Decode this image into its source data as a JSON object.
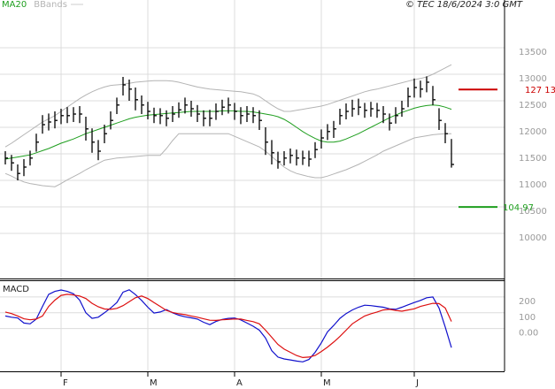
{
  "chart_data": [
    {
      "type": "ohlc",
      "source": "© TEC 18/6/2024 3:0 GMT",
      "ylim": [
        9150,
        14400
      ],
      "yticks": [
        10000,
        10500,
        11000,
        11500,
        12000,
        12500,
        13000,
        13500
      ],
      "grid": true,
      "ohlc": {
        "color": "#000000",
        "high": [
          11550,
          11480,
          11300,
          11400,
          11560,
          11880,
          12230,
          12260,
          12300,
          12350,
          12380,
          12380,
          12400,
          12200,
          11980,
          11760,
          12050,
          12300,
          12560,
          12950,
          12900,
          12750,
          12600,
          12480,
          12370,
          12360,
          12320,
          12400,
          12470,
          12560,
          12500,
          12420,
          12320,
          12330,
          12450,
          12520,
          12560,
          12460,
          12380,
          12400,
          12380,
          12320,
          12000,
          11760,
          11540,
          11550,
          11600,
          11580,
          11560,
          11560,
          11720,
          11960,
          12060,
          12120,
          12350,
          12450,
          12520,
          12540,
          12460,
          12480,
          12460,
          12400,
          12260,
          12380,
          12500,
          12750,
          12920,
          12880,
          12960,
          12780,
          12360,
          12080,
          11780
        ],
        "low": [
          11300,
          11180,
          11000,
          11080,
          11280,
          11540,
          11880,
          11940,
          11980,
          12060,
          12080,
          12100,
          12080,
          11750,
          11520,
          11380,
          11700,
          11960,
          12250,
          12600,
          12500,
          12320,
          12250,
          12150,
          12080,
          12060,
          12020,
          12100,
          12180,
          12260,
          12200,
          12100,
          12020,
          12020,
          12140,
          12230,
          12260,
          12140,
          12060,
          12100,
          12080,
          11950,
          11480,
          11300,
          11220,
          11280,
          11320,
          11280,
          11290,
          11260,
          11420,
          11600,
          11760,
          11800,
          12050,
          12150,
          12200,
          12230,
          12180,
          12200,
          12180,
          12080,
          11940,
          12070,
          12200,
          12380,
          12560,
          12560,
          12660,
          12420,
          11950,
          11700,
          11240
        ],
        "close": [
          11420,
          11330,
          11130,
          11250,
          11420,
          11720,
          12050,
          12100,
          12130,
          12220,
          12220,
          12250,
          12250,
          11970,
          11720,
          11550,
          11880,
          12130,
          12420,
          12800,
          12720,
          12520,
          12420,
          12300,
          12220,
          12220,
          12170,
          12250,
          12330,
          12420,
          12350,
          12250,
          12170,
          12170,
          12300,
          12380,
          12420,
          12300,
          12220,
          12250,
          12220,
          12130,
          11720,
          11520,
          11350,
          11420,
          11470,
          11420,
          11420,
          11400,
          11580,
          11800,
          11920,
          11970,
          12220,
          12300,
          12350,
          12380,
          12320,
          12350,
          12320,
          12250,
          12080,
          12220,
          12350,
          12580,
          12750,
          12720,
          12850,
          12520,
          12130,
          11880,
          11300
        ]
      },
      "series": [
        {
          "name": "MA20",
          "color": "#1e9e1e",
          "values": [
            11400,
            11420,
            11440,
            11460,
            11480,
            11520,
            11560,
            11600,
            11650,
            11700,
            11740,
            11780,
            11830,
            11880,
            11920,
            11960,
            12000,
            12040,
            12080,
            12120,
            12160,
            12190,
            12210,
            12230,
            12240,
            12250,
            12260,
            12270,
            12280,
            12290,
            12300,
            12300,
            12300,
            12300,
            12300,
            12310,
            12310,
            12310,
            12300,
            12300,
            12290,
            12270,
            12250,
            12230,
            12200,
            12150,
            12080,
            12000,
            11920,
            11850,
            11790,
            11740,
            11720,
            11720,
            11740,
            11780,
            11830,
            11880,
            11940,
            12000,
            12060,
            12120,
            12180,
            12230,
            12280,
            12320,
            12360,
            12390,
            12410,
            12420,
            12410,
            12380,
            12340
          ]
        },
        {
          "name": "BBands",
          "color": "#b4b4b4",
          "upper": [
            11630,
            11700,
            11780,
            11860,
            11940,
            12020,
            12100,
            12160,
            12220,
            12300,
            12380,
            12460,
            12540,
            12610,
            12670,
            12720,
            12760,
            12790,
            12800,
            12810,
            12830,
            12850,
            12860,
            12870,
            12880,
            12880,
            12880,
            12870,
            12850,
            12820,
            12790,
            12760,
            12740,
            12720,
            12710,
            12700,
            12690,
            12680,
            12670,
            12650,
            12630,
            12580,
            12500,
            12420,
            12350,
            12300,
            12300,
            12320,
            12340,
            12360,
            12380,
            12400,
            12430,
            12470,
            12510,
            12550,
            12590,
            12630,
            12670,
            12700,
            12720,
            12750,
            12780,
            12810,
            12840,
            12870,
            12900,
            12920,
            12950,
            13000,
            13060,
            13120,
            13180
          ],
          "lower": [
            11130,
            11080,
            11020,
            10970,
            10940,
            10920,
            10900,
            10890,
            10880,
            10940,
            11010,
            11070,
            11130,
            11200,
            11260,
            11320,
            11380,
            11400,
            11420,
            11430,
            11440,
            11450,
            11460,
            11470,
            11470,
            11470,
            11600,
            11750,
            11880,
            11880,
            11880,
            11880,
            11880,
            11880,
            11880,
            11880,
            11880,
            11830,
            11780,
            11730,
            11680,
            11630,
            11550,
            11450,
            11350,
            11250,
            11180,
            11130,
            11100,
            11070,
            11050,
            11050,
            11080,
            11120,
            11160,
            11200,
            11250,
            11300,
            11360,
            11420,
            11480,
            11550,
            11600,
            11650,
            11700,
            11750,
            11800,
            11820,
            11840,
            11860,
            11870,
            11880,
            11880
          ]
        }
      ],
      "annotations": [
        {
          "label": "127 13",
          "value": 12713,
          "color": "#cc0000"
        },
        {
          "label": "104 97",
          "value": 10497,
          "color": "#1e9e1e"
        }
      ]
    },
    {
      "type": "line",
      "title": "MACD",
      "ylim": [
        -270,
        300
      ],
      "yticks": [
        {
          "value": 0,
          "label": "0.00"
        },
        100,
        200
      ],
      "categories": [
        null,
        null,
        null,
        null,
        null,
        null,
        null,
        null,
        null,
        "F",
        null,
        null,
        null,
        null,
        null,
        null,
        null,
        null,
        null,
        null,
        null,
        null,
        null,
        "M",
        null,
        null,
        null,
        null,
        null,
        null,
        null,
        null,
        null,
        null,
        null,
        null,
        null,
        "A",
        null,
        null,
        null,
        null,
        null,
        null,
        null,
        null,
        null,
        null,
        null,
        null,
        null,
        "M",
        null,
        null,
        null,
        null,
        null,
        null,
        null,
        null,
        null,
        null,
        null,
        null,
        null,
        null,
        "J",
        null,
        null,
        null,
        null,
        null,
        null
      ],
      "series": [
        {
          "color": "#1010cc",
          "values": [
            80,
            72,
            67,
            35,
            30,
            60,
            140,
            217,
            235,
            244,
            235,
            220,
            180,
            100,
            65,
            72,
            100,
            130,
            165,
            230,
            245,
            215,
            178,
            135,
            98,
            105,
            120,
            100,
            85,
            75,
            68,
            60,
            40,
            25,
            45,
            58,
            65,
            67,
            55,
            35,
            15,
            -10,
            -60,
            -140,
            -180,
            -192,
            -198,
            -205,
            -210,
            -195,
            -150,
            -90,
            -20,
            20,
            65,
            95,
            118,
            135,
            148,
            145,
            140,
            135,
            125,
            122,
            135,
            150,
            165,
            178,
            195,
            200,
            130,
            10,
            -120
          ]
        },
        {
          "color": "#dd1010",
          "values": [
            105,
            95,
            80,
            62,
            56,
            60,
            80,
            140,
            180,
            210,
            217,
            212,
            206,
            190,
            160,
            138,
            124,
            122,
            128,
            145,
            170,
            195,
            206,
            190,
            165,
            140,
            115,
            102,
            94,
            88,
            80,
            72,
            62,
            53,
            52,
            56,
            58,
            61,
            60,
            52,
            44,
            30,
            -10,
            -55,
            -100,
            -130,
            -150,
            -170,
            -183,
            -180,
            -170,
            -145,
            -117,
            -85,
            -50,
            -10,
            30,
            55,
            80,
            94,
            105,
            118,
            122,
            115,
            110,
            118,
            125,
            140,
            150,
            160,
            158,
            130,
            45
          ]
        }
      ]
    }
  ]
}
